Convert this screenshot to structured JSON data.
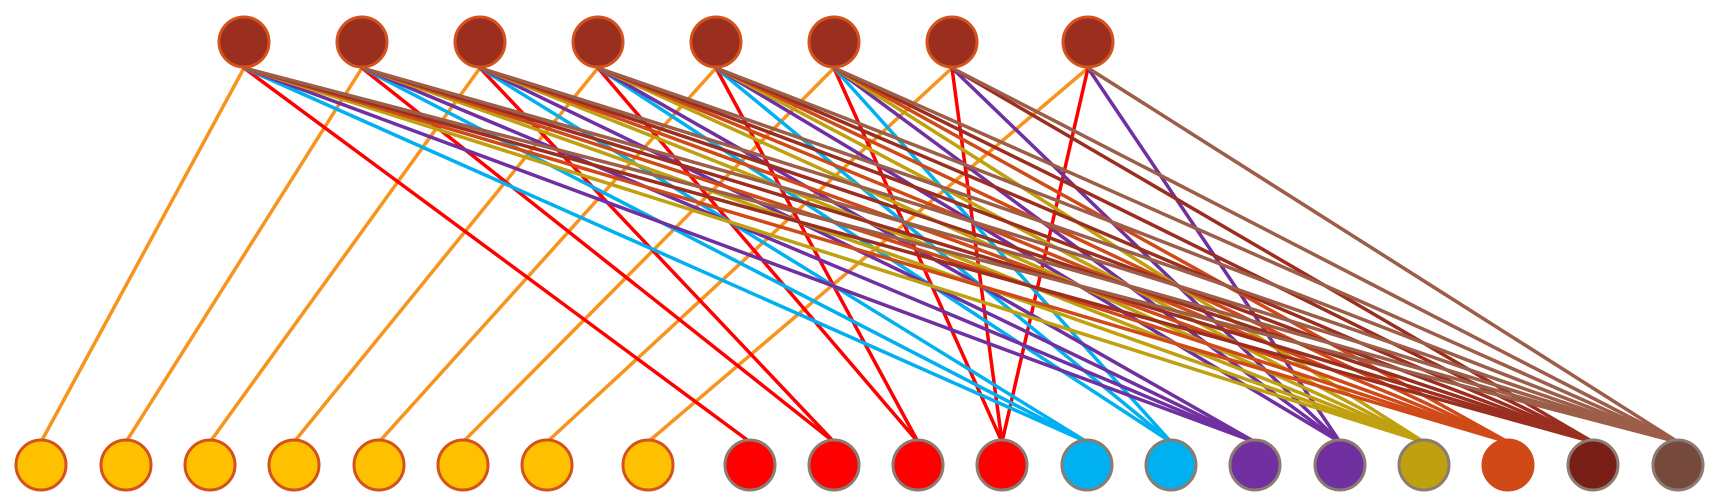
{
  "diagram": {
    "type": "bipartite-graph",
    "top_nodes": [
      {
        "id": "t1",
        "fill": "#9A2E1F",
        "stroke": "#D4521C"
      },
      {
        "id": "t2",
        "fill": "#9A2E1F",
        "stroke": "#D4521C"
      },
      {
        "id": "t3",
        "fill": "#9A2E1F",
        "stroke": "#D4521C"
      },
      {
        "id": "t4",
        "fill": "#9A2E1F",
        "stroke": "#D4521C"
      },
      {
        "id": "t5",
        "fill": "#9A2E1F",
        "stroke": "#D4521C"
      },
      {
        "id": "t6",
        "fill": "#9A2E1F",
        "stroke": "#D4521C"
      },
      {
        "id": "t7",
        "fill": "#9A2E1F",
        "stroke": "#D4521C"
      },
      {
        "id": "t8",
        "fill": "#9A2E1F",
        "stroke": "#D4521C"
      }
    ],
    "bottom_nodes": [
      {
        "id": "b1",
        "fill": "#FFC000",
        "stroke": "#D4521C"
      },
      {
        "id": "b2",
        "fill": "#FFC000",
        "stroke": "#D4521C"
      },
      {
        "id": "b3",
        "fill": "#FFC000",
        "stroke": "#D4521C"
      },
      {
        "id": "b4",
        "fill": "#FFC000",
        "stroke": "#D4521C"
      },
      {
        "id": "b5",
        "fill": "#FFC000",
        "stroke": "#D4521C"
      },
      {
        "id": "b6",
        "fill": "#FFC000",
        "stroke": "#D4521C"
      },
      {
        "id": "b7",
        "fill": "#FFC000",
        "stroke": "#D4521C"
      },
      {
        "id": "b8",
        "fill": "#FFC000",
        "stroke": "#D4521C"
      },
      {
        "id": "b9",
        "fill": "#FF0000",
        "stroke": "#8C7B70"
      },
      {
        "id": "b10",
        "fill": "#FF0000",
        "stroke": "#8C7B70"
      },
      {
        "id": "b11",
        "fill": "#FF0000",
        "stroke": "#8C7B70"
      },
      {
        "id": "b12",
        "fill": "#FF0000",
        "stroke": "#8C7B70"
      },
      {
        "id": "b13",
        "fill": "#00B0F0",
        "stroke": "#8C7B70"
      },
      {
        "id": "b14",
        "fill": "#00B0F0",
        "stroke": "#8C7B70"
      },
      {
        "id": "b15",
        "fill": "#7030A0",
        "stroke": "#8C7B70"
      },
      {
        "id": "b16",
        "fill": "#7030A0",
        "stroke": "#8C7B70"
      },
      {
        "id": "b17",
        "fill": "#BFA10F",
        "stroke": "#8C7B70"
      },
      {
        "id": "b18",
        "fill": "#D04A18",
        "stroke": "#D04A18"
      },
      {
        "id": "b19",
        "fill": "#7A1F17",
        "stroke": "#8C7B70"
      },
      {
        "id": "b20",
        "fill": "#754A3C",
        "stroke": "#8C7B70"
      }
    ],
    "edge_groups": [
      {
        "target": "b1",
        "color": "#F7941D",
        "sources": [
          "t1"
        ]
      },
      {
        "target": "b2",
        "color": "#F7941D",
        "sources": [
          "t2"
        ]
      },
      {
        "target": "b3",
        "color": "#F7941D",
        "sources": [
          "t3"
        ]
      },
      {
        "target": "b4",
        "color": "#F7941D",
        "sources": [
          "t4"
        ]
      },
      {
        "target": "b5",
        "color": "#F7941D",
        "sources": [
          "t5"
        ]
      },
      {
        "target": "b6",
        "color": "#F7941D",
        "sources": [
          "t6"
        ]
      },
      {
        "target": "b7",
        "color": "#F7941D",
        "sources": [
          "t7"
        ]
      },
      {
        "target": "b8",
        "color": "#F7941D",
        "sources": [
          "t8"
        ]
      },
      {
        "target": "b9",
        "color": "#FF0000",
        "sources": [
          "t1"
        ]
      },
      {
        "target": "b10",
        "color": "#FF0000",
        "sources": [
          "t2",
          "t3"
        ]
      },
      {
        "target": "b11",
        "color": "#FF0000",
        "sources": [
          "t4",
          "t5"
        ]
      },
      {
        "target": "b12",
        "color": "#FF0000",
        "sources": [
          "t6",
          "t7",
          "t8"
        ]
      },
      {
        "target": "b13",
        "color": "#00B0F0",
        "sources": [
          "t1",
          "t2",
          "t3"
        ]
      },
      {
        "target": "b14",
        "color": "#00B0F0",
        "sources": [
          "t4",
          "t5",
          "t6"
        ]
      },
      {
        "target": "b15",
        "color": "#7030A0",
        "sources": [
          "t1",
          "t2",
          "t3",
          "t4"
        ]
      },
      {
        "target": "b16",
        "color": "#7030A0",
        "sources": [
          "t5",
          "t6",
          "t7",
          "t8"
        ]
      },
      {
        "target": "b17",
        "color": "#BFA10F",
        "sources": [
          "t1",
          "t2",
          "t3",
          "t4",
          "t5",
          "t6"
        ]
      },
      {
        "target": "b18",
        "color": "#D04A18",
        "sources": [
          "t1",
          "t2",
          "t3",
          "t4",
          "t5",
          "t6"
        ]
      },
      {
        "target": "b19",
        "color": "#9A2E1F",
        "sources": [
          "t1",
          "t2",
          "t3",
          "t4",
          "t5",
          "t6",
          "t7"
        ]
      },
      {
        "target": "b20",
        "color": "#9C5E48",
        "sources": [
          "t1",
          "t2",
          "t3",
          "t4",
          "t5",
          "t6",
          "t7",
          "t8"
        ]
      }
    ]
  }
}
